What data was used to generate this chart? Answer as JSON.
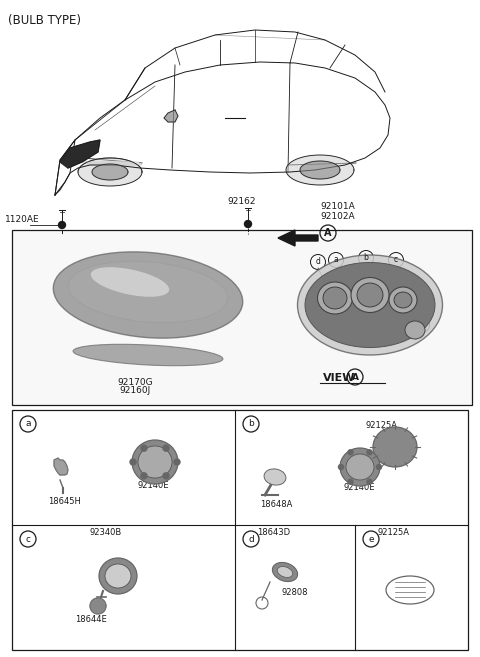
{
  "title": "(BULB TYPE)",
  "bg": "#ffffff",
  "tc": "#1a1a1a",
  "gray1": "#aaaaaa",
  "gray2": "#888888",
  "gray3": "#cccccc",
  "gray4": "#666666",
  "gray5": "#dddddd",
  "part_labels": {
    "bolt_label": "1120AE",
    "top_right_labels": "92101A\n92102A",
    "screw_label": "92162",
    "main_box_label_1": "92170G",
    "main_box_label_2": "92160J"
  },
  "sub_panels": {
    "a": [
      "18645H",
      "92140E"
    ],
    "b": [
      "92125A",
      "18648A",
      "92140E"
    ],
    "c": [
      "92340B",
      "18644E"
    ],
    "d": [
      "18643D",
      "92808"
    ],
    "e": [
      "92125A"
    ]
  },
  "font_size_title": 8.5,
  "font_size_labels": 6.5,
  "font_size_part": 6.0
}
